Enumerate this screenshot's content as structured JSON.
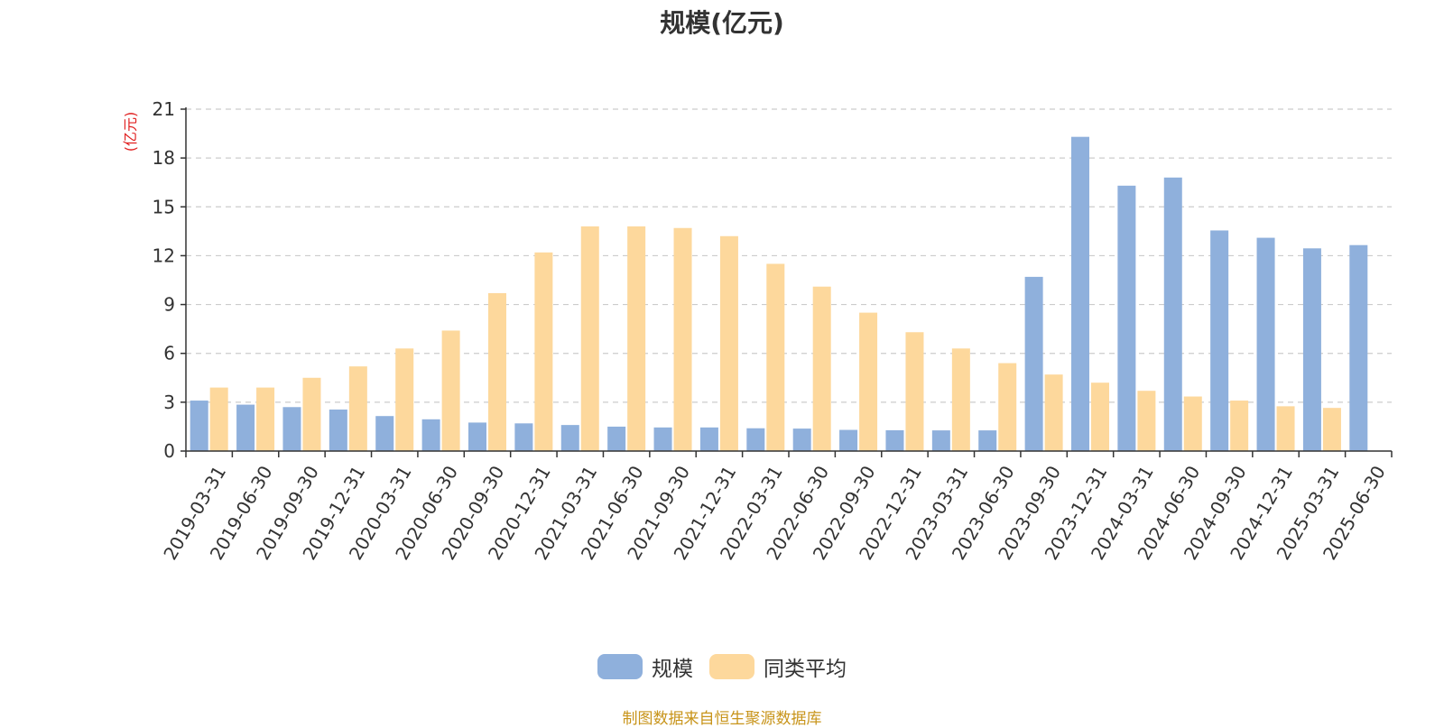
{
  "chart_data": {
    "type": "bar",
    "title": "规模(亿元)",
    "ylabel": "(亿元)",
    "ylim": [
      0,
      21
    ],
    "yticks": [
      0,
      3,
      6,
      9,
      12,
      15,
      18,
      21
    ],
    "grid": true,
    "legend_position": "bottom",
    "categories": [
      "2019-03-31",
      "2019-06-30",
      "2019-09-30",
      "2019-12-31",
      "2020-03-31",
      "2020-06-30",
      "2020-09-30",
      "2020-12-31",
      "2021-03-31",
      "2021-06-30",
      "2021-09-30",
      "2021-12-31",
      "2022-03-31",
      "2022-06-30",
      "2022-09-30",
      "2022-12-31",
      "2023-03-31",
      "2023-06-30",
      "2023-09-30",
      "2023-12-31",
      "2024-03-31",
      "2024-06-30",
      "2024-09-30",
      "2024-12-31",
      "2025-03-31",
      "2025-06-30"
    ],
    "series": [
      {
        "name": "规模",
        "color": "#8fb0dc",
        "values": [
          3.1,
          2.85,
          2.7,
          2.55,
          2.15,
          1.95,
          1.75,
          1.7,
          1.6,
          1.5,
          1.45,
          1.45,
          1.4,
          1.38,
          1.3,
          1.28,
          1.27,
          1.27,
          10.7,
          19.3,
          16.3,
          16.8,
          13.55,
          13.1,
          12.45,
          12.65
        ]
      },
      {
        "name": "同类平均",
        "color": "#fdd89c",
        "values": [
          3.9,
          3.9,
          4.5,
          5.2,
          6.3,
          7.4,
          9.7,
          12.2,
          13.8,
          13.8,
          13.7,
          13.2,
          11.5,
          10.1,
          8.5,
          7.3,
          6.3,
          5.4,
          4.7,
          4.2,
          3.7,
          3.35,
          3.1,
          2.75,
          2.65,
          null
        ]
      }
    ]
  },
  "source_text": "制图数据来自恒生聚源数据库",
  "colors": {
    "source": "#c8941a",
    "unit": "#e02020",
    "axis": "#333333",
    "grid": "#cccccc"
  }
}
